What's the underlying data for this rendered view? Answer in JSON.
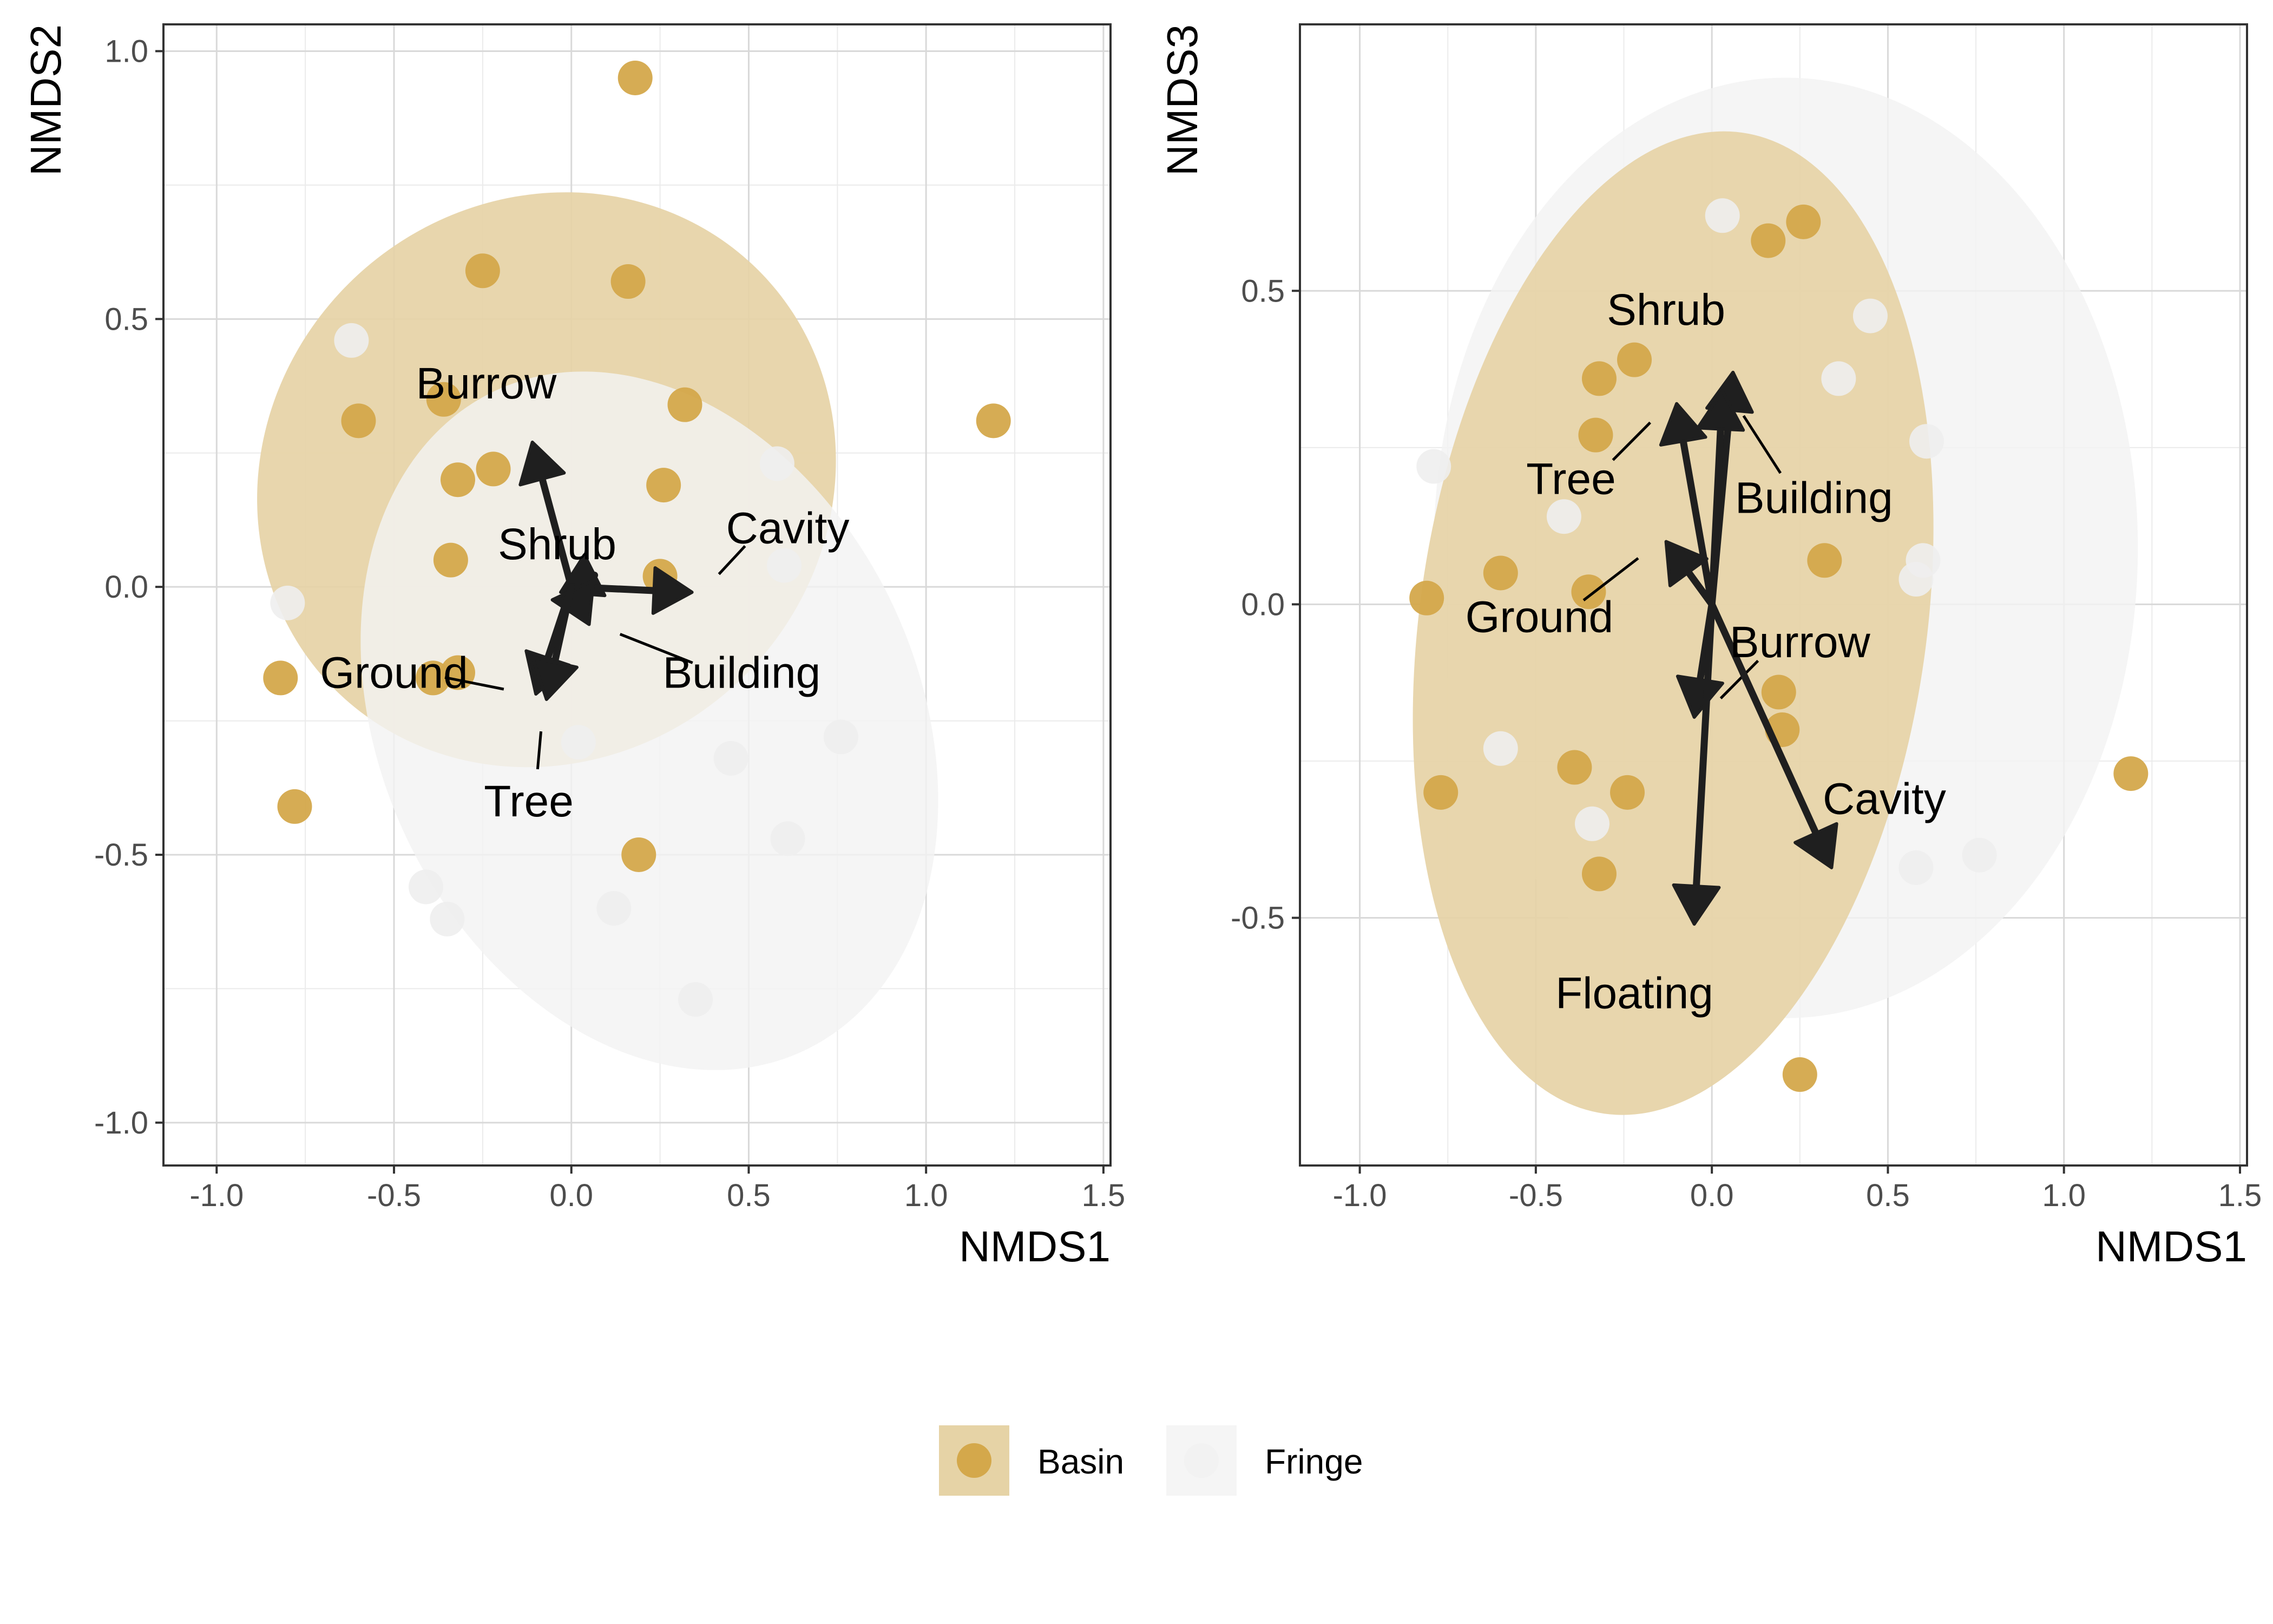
{
  "legend": {
    "entries": [
      {
        "label": "Basin",
        "point_color": "#D4A84B",
        "key_fill": "#E6D3A6"
      },
      {
        "label": "Fringe",
        "point_color": "#F2F2F2",
        "key_fill": "#F5F5F5"
      }
    ]
  },
  "colors": {
    "basin_point": "#D4A84B",
    "basin_ellipse": "#E6D3A6",
    "fringe_point": "#EEEEEE",
    "fringe_ellipse": "#F3F3F3",
    "arrow": "#1F1F1F",
    "grid": "#D9D9D9",
    "panel_border": "#333333"
  },
  "chart_data": [
    {
      "type": "scatter",
      "title": "",
      "xlabel": "NMDS1",
      "ylabel": "NMDS2",
      "xlim": [
        -1.15,
        1.52
      ],
      "ylim": [
        -1.08,
        1.05
      ],
      "xticks": [
        -1.0,
        -0.5,
        0.0,
        0.5,
        1.0,
        1.5
      ],
      "xtick_labels": [
        "-1.0",
        "-0.5",
        "0.0",
        "0.5",
        "1.0",
        "1.5"
      ],
      "yticks": [
        -1.0,
        -0.5,
        0.0,
        0.5,
        1.0
      ],
      "ytick_labels": [
        "-1.0",
        "-0.5",
        "0.0",
        "0.5",
        "1.0"
      ],
      "grid": true,
      "ellipses": [
        {
          "group": "Basin",
          "cx": -0.07,
          "cy": 0.2,
          "rx": 0.84,
          "ry": 0.52,
          "angle": 42
        },
        {
          "group": "Fringe",
          "cx": 0.22,
          "cy": -0.25,
          "rx": 0.76,
          "ry": 0.68,
          "angle": 25
        }
      ],
      "series": [
        {
          "name": "Basin",
          "points": [
            [
              0.18,
              0.95
            ],
            [
              -0.25,
              0.59
            ],
            [
              0.16,
              0.57
            ],
            [
              -0.6,
              0.31
            ],
            [
              1.19,
              0.31
            ],
            [
              -0.36,
              0.35
            ],
            [
              0.32,
              0.34
            ],
            [
              -0.32,
              0.2
            ],
            [
              -0.22,
              0.22
            ],
            [
              0.26,
              0.19
            ],
            [
              -0.34,
              0.05
            ],
            [
              0.25,
              0.02
            ],
            [
              -0.82,
              -0.17
            ],
            [
              -0.78,
              -0.41
            ],
            [
              0.19,
              -0.5
            ],
            [
              -0.39,
              -0.17
            ],
            [
              -0.32,
              -0.16
            ]
          ]
        },
        {
          "name": "Fringe",
          "points": [
            [
              -0.62,
              0.46
            ],
            [
              0.58,
              0.23
            ],
            [
              0.6,
              0.04
            ],
            [
              -0.8,
              -0.03
            ],
            [
              0.02,
              -0.29
            ],
            [
              0.45,
              -0.32
            ],
            [
              0.76,
              -0.28
            ],
            [
              0.61,
              -0.47
            ],
            [
              -0.41,
              -0.56
            ],
            [
              -0.35,
              -0.62
            ],
            [
              0.35,
              -0.77
            ],
            [
              0.12,
              -0.6
            ]
          ]
        }
      ],
      "arrows": [
        {
          "name": "Burrow",
          "x": -0.11,
          "y": 0.27,
          "label_x": -0.24,
          "label_y": 0.38
        },
        {
          "name": "Shrub",
          "x": -0.03,
          "y": -0.01,
          "label_x": -0.04,
          "label_y": 0.08
        },
        {
          "name": "Cavity",
          "x": 0.34,
          "y": -0.01,
          "label_x": 0.61,
          "label_y": 0.11
        },
        {
          "name": "Building",
          "x": 0.05,
          "y": -0.07,
          "label_x": 0.48,
          "label_y": -0.16
        },
        {
          "name": "Ground",
          "x": -0.1,
          "y": -0.2,
          "label_x": -0.5,
          "label_y": -0.16
        },
        {
          "name": "Tree",
          "x": -0.07,
          "y": -0.21,
          "label_x": -0.12,
          "label_y": -0.4
        }
      ]
    },
    {
      "type": "scatter",
      "title": "",
      "xlabel": "NMDS1",
      "ylabel": "NMDS3",
      "xlim": [
        -1.17,
        1.52
      ],
      "ylim": [
        -0.895,
        0.925
      ],
      "xticks": [
        -1.0,
        -0.5,
        0.0,
        0.5,
        1.0,
        1.5
      ],
      "xtick_labels": [
        "-1.0",
        "-0.5",
        "0.0",
        "0.5",
        "1.0",
        "1.5"
      ],
      "yticks": [
        -0.5,
        0.0,
        0.5
      ],
      "ytick_labels": [
        "-0.5",
        "0.0",
        "0.5"
      ],
      "grid": true,
      "ellipses": [
        {
          "group": "Fringe",
          "cx": 0.21,
          "cy": 0.09,
          "rx": 1.0,
          "ry": 0.75,
          "angle": 0
        },
        {
          "group": "Basin",
          "cx": -0.11,
          "cy": -0.03,
          "rx": 0.72,
          "ry": 0.79,
          "angle": -8
        }
      ],
      "series": [
        {
          "name": "Basin",
          "points": [
            [
              0.16,
              0.58
            ],
            [
              0.26,
              0.61
            ],
            [
              -0.22,
              0.39
            ],
            [
              -0.32,
              0.36
            ],
            [
              -0.33,
              0.27
            ],
            [
              -0.6,
              0.05
            ],
            [
              -0.35,
              0.02
            ],
            [
              -0.81,
              0.01
            ],
            [
              0.32,
              0.07
            ],
            [
              0.19,
              -0.14
            ],
            [
              0.2,
              -0.2
            ],
            [
              -0.39,
              -0.26
            ],
            [
              -0.24,
              -0.3
            ],
            [
              -0.77,
              -0.3
            ],
            [
              -0.32,
              -0.43
            ],
            [
              1.19,
              -0.27
            ],
            [
              0.25,
              -0.75
            ]
          ]
        },
        {
          "name": "Fringe",
          "points": [
            [
              0.03,
              0.62
            ],
            [
              0.45,
              0.46
            ],
            [
              0.36,
              0.36
            ],
            [
              0.61,
              0.26
            ],
            [
              -0.79,
              0.22
            ],
            [
              0.58,
              0.04
            ],
            [
              0.6,
              0.07
            ],
            [
              -0.42,
              0.14
            ],
            [
              -0.6,
              -0.23
            ],
            [
              -0.34,
              -0.35
            ],
            [
              0.58,
              -0.42
            ],
            [
              0.76,
              -0.4
            ]
          ]
        }
      ],
      "arrows": [
        {
          "name": "Shrub",
          "x": 0.06,
          "y": 0.37,
          "label_x": -0.13,
          "label_y": 0.47
        },
        {
          "name": "Tree",
          "x": -0.1,
          "y": 0.32,
          "label_x": -0.4,
          "label_y": 0.2
        },
        {
          "name": "Building",
          "x": 0.03,
          "y": 0.34,
          "label_x": 0.29,
          "label_y": 0.17
        },
        {
          "name": "Ground",
          "x": -0.13,
          "y": 0.1,
          "label_x": -0.49,
          "label_y": -0.02
        },
        {
          "name": "Burrow",
          "x": -0.05,
          "y": -0.18,
          "label_x": 0.25,
          "label_y": -0.06
        },
        {
          "name": "Cavity",
          "x": 0.34,
          "y": -0.42,
          "label_x": 0.49,
          "label_y": -0.31
        },
        {
          "name": "Floating",
          "x": -0.05,
          "y": -0.51,
          "label_x": -0.22,
          "label_y": -0.62
        }
      ]
    }
  ]
}
